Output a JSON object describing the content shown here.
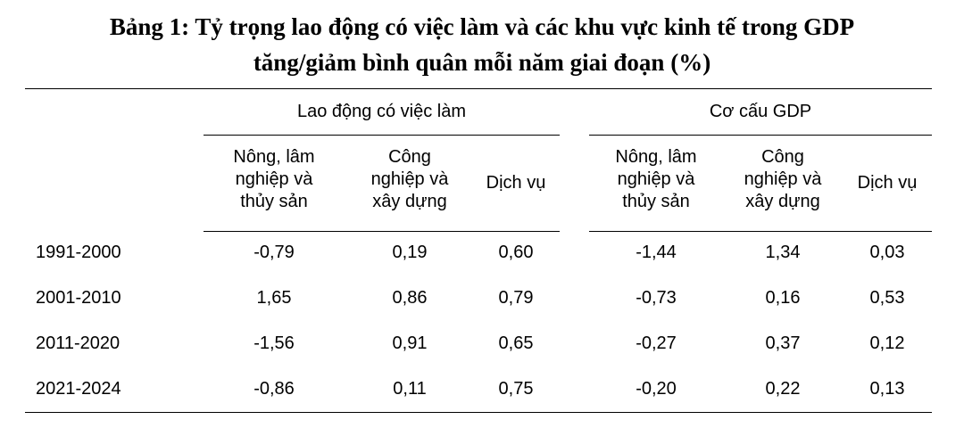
{
  "title": {
    "line1": "Bảng 1: Tỷ trọng lao động có việc làm và các khu vực kinh tế trong GDP",
    "line2": "tăng/giảm bình quân mỗi năm giai đoạn (%)"
  },
  "table": {
    "groups": [
      {
        "label": "Lao động có việc làm",
        "subheaders": [
          [
            "Nông, lâm",
            "nghiệp và",
            "thủy sản"
          ],
          [
            "Công",
            "nghiệp và",
            "xây dựng"
          ],
          [
            "Dịch vụ"
          ]
        ]
      },
      {
        "label": "Cơ cấu GDP",
        "subheaders": [
          [
            "Nông, lâm",
            "nghiệp và",
            "thủy sản"
          ],
          [
            "Công",
            "nghiệp và",
            "xây dựng"
          ],
          [
            "Dịch vụ"
          ]
        ]
      }
    ],
    "rows": [
      {
        "period": "1991-2000",
        "values": [
          "-0,79",
          "0,19",
          "0,60",
          "-1,44",
          "1,34",
          "0,03"
        ]
      },
      {
        "period": "2001-2010",
        "values": [
          "1,65",
          "0,86",
          "0,79",
          "-0,73",
          "0,16",
          "0,53"
        ]
      },
      {
        "period": "2011-2020",
        "values": [
          "-1,56",
          "0,91",
          "0,65",
          "-0,27",
          "0,37",
          "0,12"
        ]
      },
      {
        "period": "2021-2024",
        "values": [
          "-0,86",
          "0,11",
          "0,75",
          "-0,20",
          "0,22",
          "0,13"
        ]
      }
    ]
  }
}
